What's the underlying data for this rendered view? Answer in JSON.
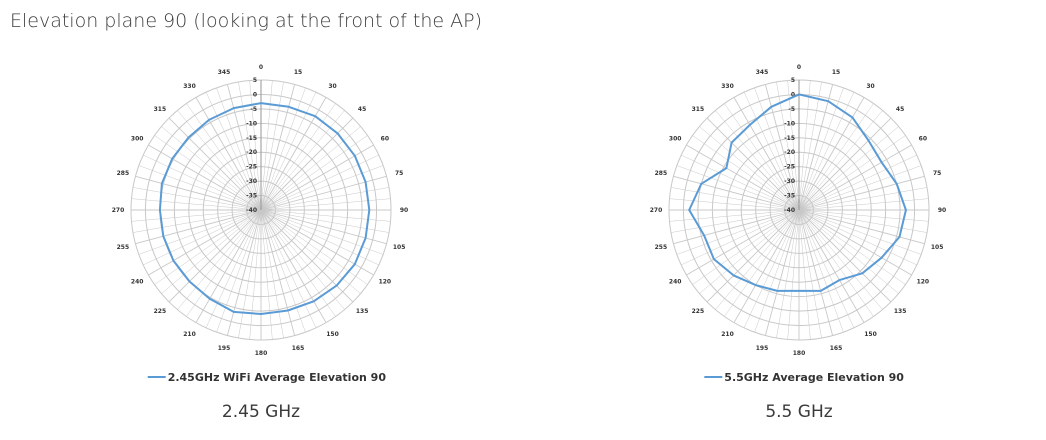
{
  "title": "Elevation plane 90 (looking at the front of the AP)",
  "captions": [
    "2.45 GHz",
    "5.5 GHz"
  ],
  "colors": {
    "series": "#5b9bd5",
    "grid": "#c8c8c8"
  },
  "chart_data": [
    {
      "type": "radar",
      "title": "",
      "angle_labels": [
        "0",
        "15",
        "30",
        "45",
        "60",
        "75",
        "90",
        "105",
        "120",
        "135",
        "150",
        "165",
        "180",
        "195",
        "210",
        "225",
        "240",
        "255",
        "270",
        "285",
        "300",
        "315",
        "330",
        "345"
      ],
      "radial_labels": [
        "5",
        "0",
        "-5",
        "-10",
        "-15",
        "-20",
        "-25",
        "-30",
        "-35",
        "-40"
      ],
      "rlim": [
        -40,
        5
      ],
      "grid": true,
      "legend": "bottom",
      "series": [
        {
          "name": "2.45GHz WiFi Average Elevation 90",
          "angles": [
            0,
            15,
            30,
            45,
            60,
            75,
            90,
            105,
            120,
            135,
            150,
            165,
            180,
            195,
            210,
            225,
            240,
            255,
            270,
            285,
            300,
            315,
            330,
            345
          ],
          "values": [
            -3,
            -3,
            -2.5,
            -2.5,
            -2.5,
            -2.5,
            -2.5,
            -2.5,
            -2.5,
            -3,
            -3.5,
            -4,
            -4,
            -3.5,
            -4.5,
            -5,
            -5,
            -5,
            -5,
            -4.5,
            -4.5,
            -4.5,
            -4,
            -3.5
          ]
        }
      ]
    },
    {
      "type": "radar",
      "title": "",
      "angle_labels": [
        "0",
        "15",
        "30",
        "45",
        "60",
        "75",
        "90",
        "105",
        "120",
        "135",
        "150",
        "165",
        "180",
        "195",
        "210",
        "225",
        "240",
        "255",
        "270",
        "285",
        "300",
        "315",
        "330",
        "345"
      ],
      "radial_labels": [
        "5",
        "0",
        "-5",
        "-10",
        "-15",
        "-20",
        "-25",
        "-30",
        "-35",
        "-40"
      ],
      "rlim": [
        -40,
        5
      ],
      "grid": true,
      "legend": "bottom",
      "series": [
        {
          "name": "5.5GHz Average Elevation 90",
          "angles": [
            0,
            15,
            30,
            45,
            60,
            75,
            90,
            105,
            120,
            135,
            150,
            165,
            180,
            195,
            210,
            225,
            240,
            255,
            270,
            285,
            300,
            315,
            330,
            345
          ],
          "values": [
            0,
            -1,
            -3,
            -6,
            -7,
            -5,
            -3,
            -4,
            -7,
            -9,
            -12,
            -11,
            -12,
            -11,
            -10,
            -8,
            -6,
            -6,
            -2,
            -5,
            -11,
            -7,
            -6,
            -3
          ]
        }
      ]
    }
  ]
}
